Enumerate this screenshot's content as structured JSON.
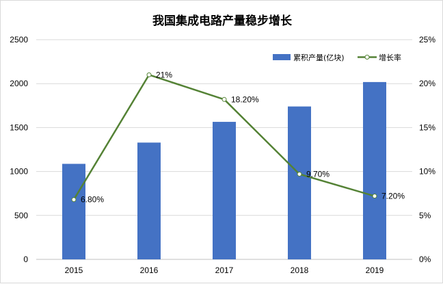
{
  "chart_data": {
    "type": "bar+line",
    "title": "我国集成电路产量稳步增长",
    "categories": [
      "2015",
      "2016",
      "2017",
      "2018",
      "2019"
    ],
    "series": [
      {
        "name": "累积产量(亿块)",
        "type": "bar",
        "axis": "left",
        "color": "#4472C4",
        "values": [
          1087,
          1329,
          1565,
          1740,
          2018
        ]
      },
      {
        "name": "增长率",
        "type": "line",
        "axis": "right",
        "color": "#548235",
        "values": [
          6.8,
          21,
          18.2,
          9.7,
          7.2
        ],
        "data_labels": [
          "6.80%",
          "21%",
          "18.20%",
          "9.70%",
          "7.20%"
        ]
      }
    ],
    "y_left": {
      "range": [
        0,
        2500
      ],
      "ticks": [
        "0",
        "500",
        "1000",
        "1500",
        "2000",
        "2500"
      ]
    },
    "y_right": {
      "range": [
        0,
        25
      ],
      "ticks": [
        "0%",
        "5%",
        "10%",
        "15%",
        "20%",
        "25%"
      ]
    },
    "grid": true,
    "legend_position": "top-right"
  }
}
